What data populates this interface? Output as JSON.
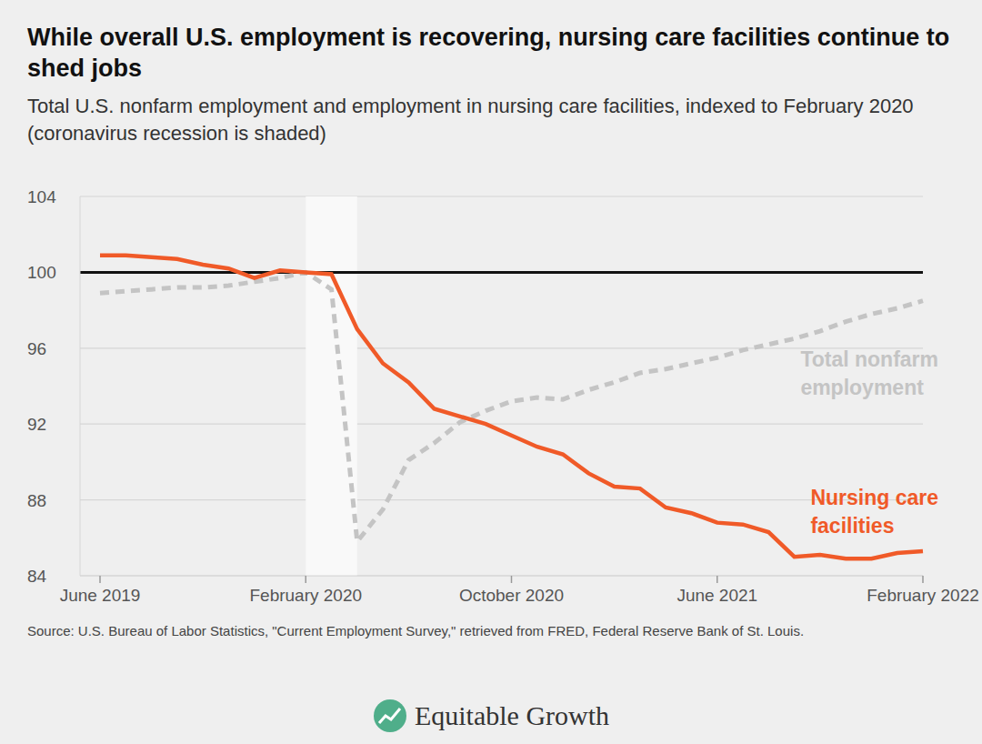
{
  "chart_data": {
    "type": "line",
    "title": "While overall U.S. employment is recovering, nursing care facilities continue to shed jobs",
    "subtitle": "Total U.S. nonfarm employment and employment in nursing care facilities, indexed to February 2020 (coronavirus recession is shaded)",
    "source": "Source: U.S. Bureau of Labor Statistics, \"Current Employment Survey,\" retrieved from FRED, Federal Reserve Bank of St. Louis.",
    "brand": "Equitable Growth",
    "categories": [
      "June 2019",
      null,
      null,
      null,
      null,
      null,
      null,
      null,
      "February 2020",
      null,
      null,
      null,
      null,
      null,
      null,
      null,
      "October 2020",
      null,
      null,
      null,
      null,
      null,
      null,
      null,
      "June 2021",
      null,
      null,
      null,
      null,
      null,
      null,
      null,
      "February 2022"
    ],
    "series": [
      {
        "name": "Total nonfarm employment",
        "color": "#c4c4c4",
        "line_style": "dashed",
        "values": [
          98.9,
          99.0,
          99.1,
          99.2,
          99.2,
          99.3,
          99.5,
          99.7,
          100.0,
          99.1,
          85.8,
          87.5,
          90.1,
          91.0,
          92.1,
          92.7,
          93.2,
          93.4,
          93.3,
          93.8,
          94.2,
          94.7,
          94.9,
          95.2,
          95.5,
          95.9,
          96.2,
          96.5,
          96.9,
          97.4,
          97.8,
          98.1,
          98.5
        ]
      },
      {
        "name": "Nursing care facilities",
        "color": "#f05a28",
        "line_style": "solid",
        "values": [
          100.9,
          100.9,
          100.8,
          100.7,
          100.4,
          100.2,
          99.7,
          100.1,
          100.0,
          99.9,
          97.0,
          95.2,
          94.2,
          92.8,
          92.4,
          92.0,
          91.4,
          90.8,
          90.4,
          89.4,
          88.7,
          88.6,
          87.6,
          87.3,
          86.8,
          86.7,
          86.3,
          85.0,
          85.1,
          84.9,
          84.9,
          85.2,
          85.3
        ]
      }
    ],
    "ylim": [
      84,
      104
    ],
    "yticks": [
      84,
      88,
      92,
      96,
      100,
      104
    ],
    "grid": true,
    "baseline": 100,
    "recession_shading": [
      8,
      10
    ]
  }
}
